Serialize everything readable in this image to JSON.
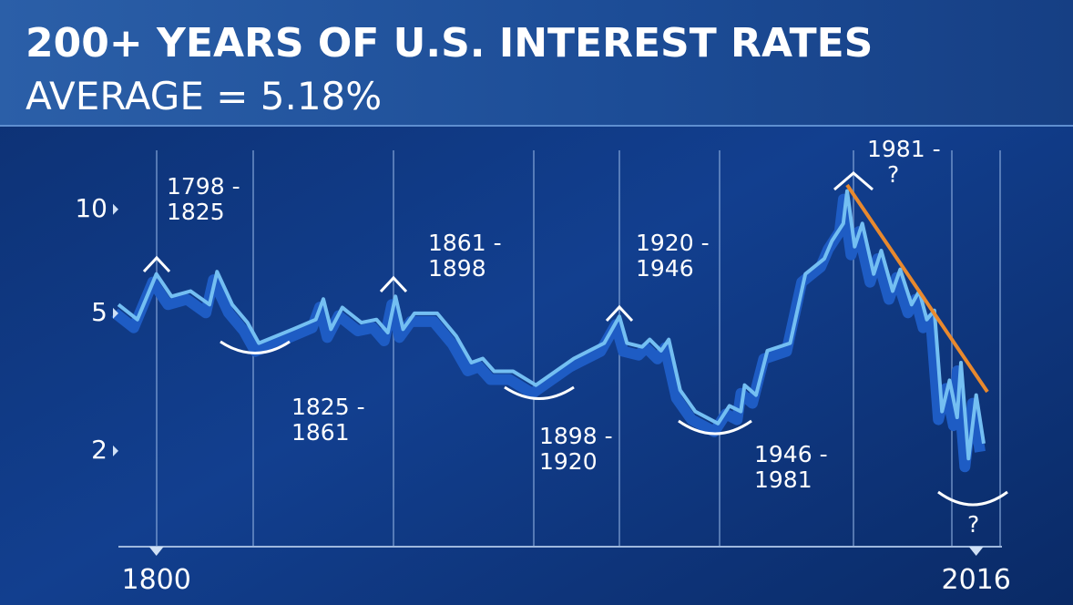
{
  "chart_data": {
    "type": "line",
    "title": "200+ YEARS OF U.S. INTEREST RATES",
    "subtitle": "AVERAGE = 5.18%",
    "x": [
      1790,
      1795,
      1800,
      1804,
      1809,
      1814,
      1816,
      1820,
      1824,
      1827,
      1836,
      1842,
      1844,
      1846,
      1849,
      1854,
      1858,
      1861,
      1863,
      1865,
      1868,
      1874,
      1879,
      1883,
      1886,
      1889,
      1894,
      1900,
      1910,
      1918,
      1922,
      1924,
      1928,
      1930,
      1933,
      1935,
      1938,
      1942,
      1948,
      1951,
      1954,
      1955,
      1958,
      1961,
      1967,
      1971,
      1976,
      1978,
      1981,
      1982,
      1984,
      1986,
      1989,
      1991,
      1994,
      1996,
      1999,
      2001,
      2003,
      2005,
      2007,
      2009,
      2011,
      2012,
      2014,
      2016,
      2018
    ],
    "values": [
      5.3,
      4.8,
      6.5,
      5.6,
      5.8,
      5.3,
      6.6,
      5.3,
      4.7,
      4.1,
      4.5,
      4.8,
      5.5,
      4.5,
      5.2,
      4.7,
      4.8,
      4.4,
      5.6,
      4.5,
      5.0,
      5.0,
      4.3,
      3.6,
      3.7,
      3.4,
      3.4,
      3.1,
      3.7,
      4.1,
      4.9,
      4.1,
      4.0,
      4.2,
      3.9,
      4.2,
      3.0,
      2.6,
      2.4,
      2.7,
      2.6,
      3.1,
      2.9,
      3.9,
      4.1,
      6.5,
      7.2,
      8.1,
      9.1,
      11.3,
      7.8,
      9.1,
      6.5,
      7.6,
      5.8,
      6.7,
      5.3,
      5.8,
      4.8,
      5.1,
      2.6,
      3.2,
      2.5,
      3.6,
      1.9,
      2.9,
      2.1
    ],
    "color": "#74bff2",
    "shadow_color": "#1e5cc4",
    "xlim": [
      1790,
      2018
    ],
    "xticks": [
      1800,
      2016
    ],
    "ylim": [
      1,
      15
    ],
    "yticks": [
      10,
      5,
      2
    ],
    "log_scale": true,
    "annotations": [
      {
        "lines": [
          "1798 -",
          "1825"
        ]
      },
      {
        "lines": [
          "1825 -",
          "1861"
        ]
      },
      {
        "lines": [
          "1861 -",
          "1898"
        ]
      },
      {
        "lines": [
          "1898 -",
          "1920"
        ]
      },
      {
        "lines": [
          "1920 -",
          "1946"
        ]
      },
      {
        "lines": [
          "1946 -",
          "1981"
        ]
      },
      {
        "lines": [
          "1981 -",
          "?"
        ]
      },
      {
        "lines": [
          "?"
        ]
      }
    ]
  }
}
